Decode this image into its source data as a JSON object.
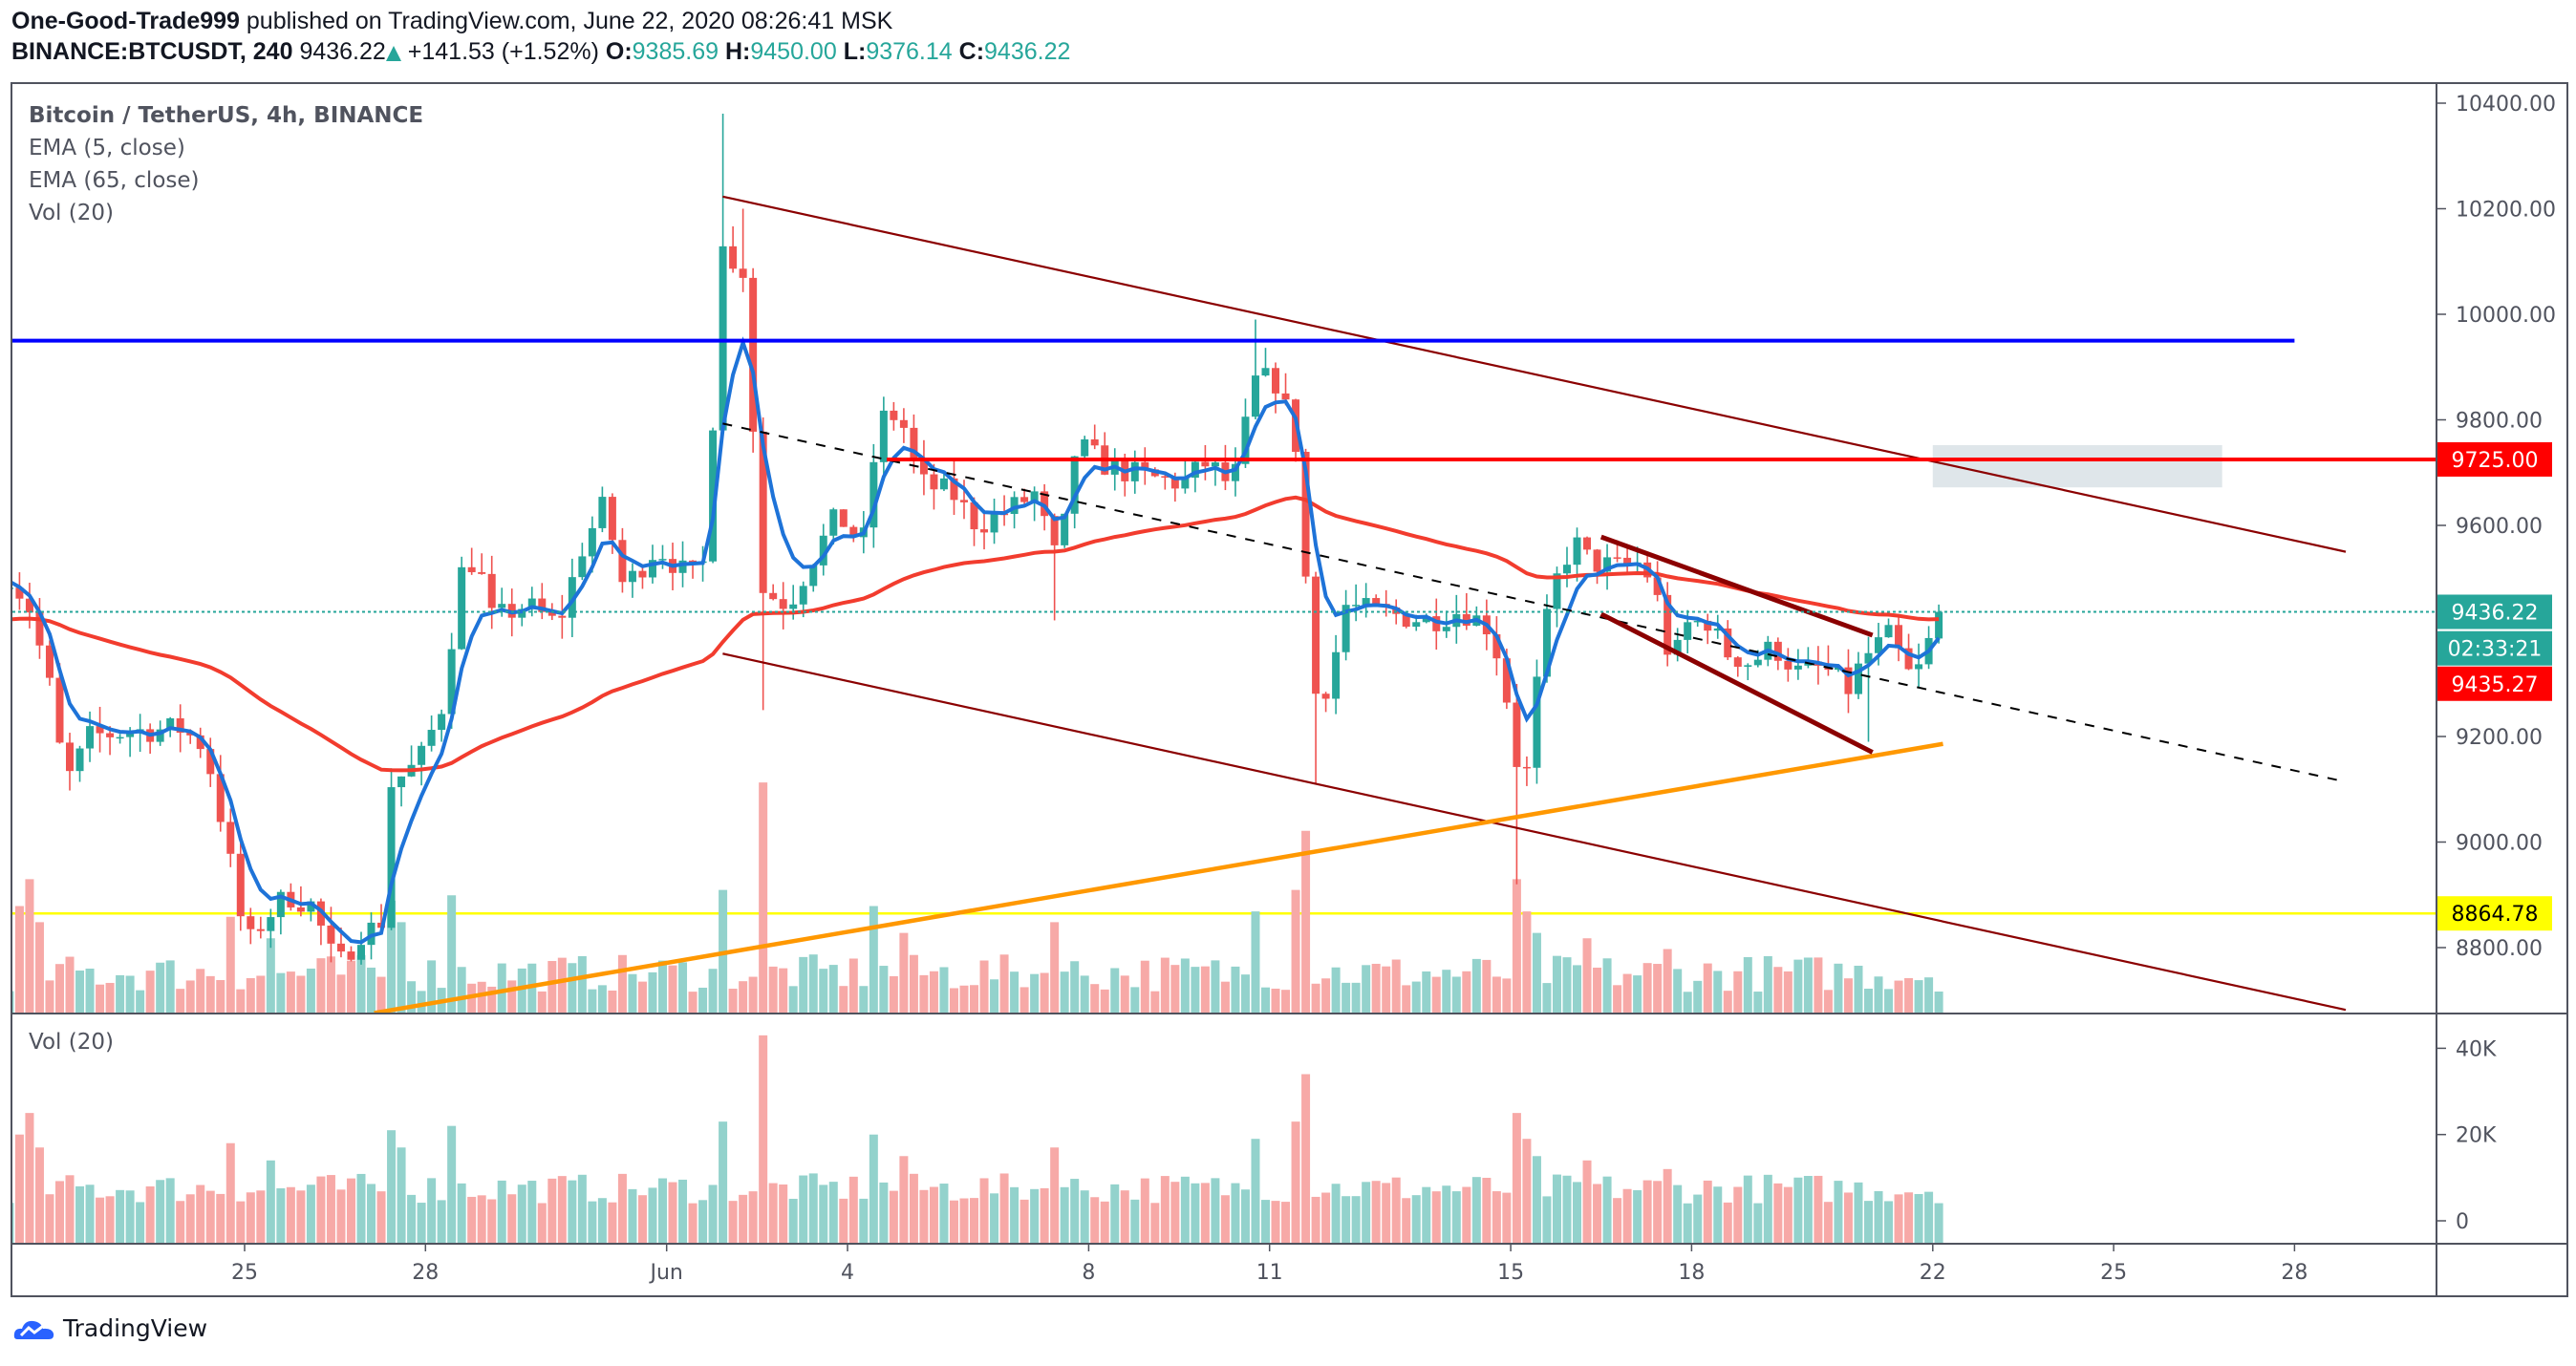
{
  "header": {
    "author": "One-Good-Trade999",
    "published": "published on TradingView.com, June 22, 2020 08:26:41 MSK",
    "symbol": "BINANCE:BTCUSDT, 240",
    "last": "9436.22",
    "change": "+141.53 (+1.52%)",
    "o_label": "O:",
    "o": "9385.69",
    "h_label": "H:",
    "h": "9450.00",
    "l_label": "L:",
    "l": "9376.14",
    "c_label": "C:",
    "c": "9436.22"
  },
  "legend": {
    "title": "Bitcoin / TetherUS, 4h, BINANCE",
    "ema5": "EMA (5, close)",
    "ema65": "EMA (65, close)",
    "vol": "Vol (20)"
  },
  "volume_pane": {
    "label": "Vol (20)"
  },
  "logo": {
    "text": "TradingView"
  },
  "colors": {
    "up": "#26a69a",
    "down": "#ef5350",
    "ema5": "#1e73d8",
    "ema65": "#f23c2e",
    "up_vol": "#93d2cc",
    "down_vol": "#f7a9a7"
  },
  "chart_data": {
    "type": "candlestick",
    "title": "Bitcoin / TetherUS, 4h, BINANCE",
    "interval": "4h",
    "ylim": [
      8680,
      10420
    ],
    "price_ticks": [
      "10400.00",
      "10200.00",
      "10000.00",
      "9800.00",
      "9600.00",
      "9200.00",
      "9000.00",
      "8800.00"
    ],
    "price_tick_values": [
      10400,
      10200,
      10000,
      9800,
      9600,
      9200,
      9000,
      8800
    ],
    "volume_ticks": [
      "40K",
      "20K",
      "0"
    ],
    "volume_tick_values": [
      40000,
      20000,
      0
    ],
    "time_ticks": [
      {
        "label": "25",
        "day": 0
      },
      {
        "label": "28",
        "day": 3
      },
      {
        "label": "Jun",
        "day": 7
      },
      {
        "label": "4",
        "day": 10
      },
      {
        "label": "8",
        "day": 14
      },
      {
        "label": "11",
        "day": 17
      },
      {
        "label": "15",
        "day": 21
      },
      {
        "label": "18",
        "day": 24
      },
      {
        "label": "22",
        "day": 28
      },
      {
        "label": "25",
        "day": 31
      },
      {
        "label": "28",
        "day": 34
      }
    ],
    "day_origin": "May 25",
    "close_path": [
      [
        -3.9,
        9507
      ],
      [
        -3.57,
        9445
      ],
      [
        -3.24,
        9300
      ],
      [
        -2.97,
        9110
      ],
      [
        -2.56,
        9200
      ],
      [
        -1.88,
        9210
      ],
      [
        -1.06,
        9215
      ],
      [
        -0.65,
        9180
      ],
      [
        -0.3,
        9000
      ],
      [
        0.03,
        8800
      ],
      [
        0.3,
        8850
      ],
      [
        0.71,
        8900
      ],
      [
        1.12,
        8880
      ],
      [
        1.53,
        8760
      ],
      [
        1.93,
        8830
      ],
      [
        2.26,
        8840
      ],
      [
        2.43,
        9110
      ],
      [
        2.89,
        9150
      ],
      [
        3.35,
        9280
      ],
      [
        3.52,
        9500
      ],
      [
        3.84,
        9540
      ],
      [
        4.11,
        9420
      ],
      [
        4.66,
        9450
      ],
      [
        5.2,
        9410
      ],
      [
        5.61,
        9560
      ],
      [
        5.97,
        9640
      ],
      [
        6.29,
        9480
      ],
      [
        6.84,
        9560
      ],
      [
        7.38,
        9500
      ],
      [
        7.71,
        9540
      ],
      [
        7.85,
        10190
      ],
      [
        8.07,
        10080
      ],
      [
        8.34,
        10090
      ],
      [
        8.53,
        9480
      ],
      [
        9.02,
        9450
      ],
      [
        9.43,
        9540
      ],
      [
        9.84,
        9620
      ],
      [
        10.25,
        9560
      ],
      [
        10.52,
        9800
      ],
      [
        10.87,
        9810
      ],
      [
        11.2,
        9680
      ],
      [
        11.74,
        9660
      ],
      [
        12.15,
        9600
      ],
      [
        12.7,
        9630
      ],
      [
        13.1,
        9660
      ],
      [
        13.5,
        9520
      ],
      [
        13.79,
        9755
      ],
      [
        14.33,
        9710
      ],
      [
        15.01,
        9690
      ],
      [
        15.56,
        9680
      ],
      [
        15.97,
        9720
      ],
      [
        16.38,
        9670
      ],
      [
        16.78,
        9880
      ],
      [
        17.14,
        9870
      ],
      [
        17.47,
        9740
      ],
      [
        17.6,
        9500
      ],
      [
        17.74,
        9280
      ],
      [
        18.01,
        9300
      ],
      [
        18.23,
        9450
      ],
      [
        18.56,
        9440
      ],
      [
        19.1,
        9430
      ],
      [
        19.65,
        9420
      ],
      [
        20.19,
        9440
      ],
      [
        20.6,
        9410
      ],
      [
        20.87,
        9330
      ],
      [
        21.06,
        9160
      ],
      [
        21.28,
        9130
      ],
      [
        21.5,
        9370
      ],
      [
        21.77,
        9500
      ],
      [
        22.04,
        9570
      ],
      [
        22.32,
        9530
      ],
      [
        22.78,
        9520
      ],
      [
        23.19,
        9530
      ],
      [
        23.46,
        9450
      ],
      [
        23.68,
        9320
      ],
      [
        23.87,
        9410
      ],
      [
        24.28,
        9420
      ],
      [
        24.55,
        9360
      ],
      [
        24.96,
        9340
      ],
      [
        25.37,
        9370
      ],
      [
        25.78,
        9320
      ],
      [
        26.19,
        9330
      ],
      [
        26.6,
        9290
      ],
      [
        26.87,
        9350
      ],
      [
        27.28,
        9390
      ],
      [
        27.68,
        9300
      ],
      [
        27.96,
        9385.69
      ],
      [
        28.17,
        9436.22
      ]
    ],
    "wick_extremes": [
      [
        7.85,
        "high",
        10380
      ],
      [
        8.53,
        "low",
        9250
      ],
      [
        8.34,
        "high",
        10200
      ],
      [
        17.74,
        "low",
        9110
      ],
      [
        16.78,
        "high",
        9990
      ],
      [
        21.1,
        "low",
        8920
      ],
      [
        26.87,
        "low",
        9190
      ],
      [
        13.5,
        "low",
        9420
      ]
    ],
    "last_candle": {
      "open": 9385.69,
      "high": 9450.0,
      "low": 9376.14,
      "close": 9436.22
    },
    "volume_base": [
      4000,
      11000
    ],
    "volume_spikes": [
      [
        -3.75,
        20000
      ],
      [
        -3.6,
        25000
      ],
      [
        -3.4,
        17000
      ],
      [
        -0.3,
        18000
      ],
      [
        0.5,
        14000
      ],
      [
        2.4,
        21000
      ],
      [
        2.6,
        17000
      ],
      [
        3.5,
        22000
      ],
      [
        7.85,
        41000
      ],
      [
        8.0,
        23000
      ],
      [
        8.52,
        43000
      ],
      [
        10.4,
        20000
      ],
      [
        11.0,
        15000
      ],
      [
        13.5,
        17000
      ],
      [
        16.7,
        19000
      ],
      [
        17.4,
        23000
      ],
      [
        17.57,
        34000
      ],
      [
        21.05,
        25000
      ],
      [
        21.3,
        19000
      ],
      [
        21.5,
        15000
      ],
      [
        22.3,
        14000
      ],
      [
        23.6,
        12000
      ]
    ],
    "ema_periods": [
      5,
      65
    ],
    "drawings": {
      "upper_channel": {
        "from": [
          7.93,
          10223
        ],
        "to": [
          34.85,
          9550
        ],
        "color": "#8b0000"
      },
      "lower_channel": {
        "from": [
          7.93,
          9357
        ],
        "to": [
          34.85,
          8682
        ],
        "color": "#8b0000"
      },
      "mid_dashed": {
        "from": [
          7.93,
          9793
        ],
        "to": [
          34.85,
          9114
        ],
        "color": "#000000"
      },
      "orange_support": {
        "from": [
          2.15,
          8676
        ],
        "to": [
          28.17,
          9186
        ],
        "color": "#ff9800"
      },
      "flag_top": {
        "from": [
          22.5,
          9578
        ],
        "to": [
          27.0,
          9392
        ],
        "color": "#8b0000"
      },
      "flag_bottom": {
        "from": [
          22.5,
          9432
        ],
        "to": [
          27.0,
          9170
        ],
        "color": "#8b0000"
      },
      "blue_level": {
        "price": 9950,
        "from": -4,
        "to": 34,
        "color": "#0000ff"
      },
      "red_level": {
        "price": 9725,
        "from": 10.65,
        "color": "#ff0000"
      },
      "yellow_level": {
        "price": 8864.78,
        "color": "#ffff00"
      },
      "target_box": {
        "from": 28.0,
        "to": 32.8,
        "top": 9752,
        "bottom": 9672,
        "color": "#dfe6ea"
      }
    },
    "price_tags": [
      {
        "label": "9725.00",
        "price": 9725,
        "bg": "#ff0000",
        "fg": "#ffffff"
      },
      {
        "label": "9436.22",
        "price": 9436.22,
        "bg": "#26a69a",
        "fg": "#ffffff"
      },
      {
        "label": "02:33:21",
        "price": 9367,
        "bg": "#26a69a",
        "fg": "#ffffff"
      },
      {
        "label": "9435.27",
        "price": 9300,
        "bg": "#ff0000",
        "fg": "#ffffff"
      },
      {
        "label": "8864.78",
        "price": 8864.78,
        "bg": "#ffff00",
        "fg": "#000000"
      }
    ]
  }
}
